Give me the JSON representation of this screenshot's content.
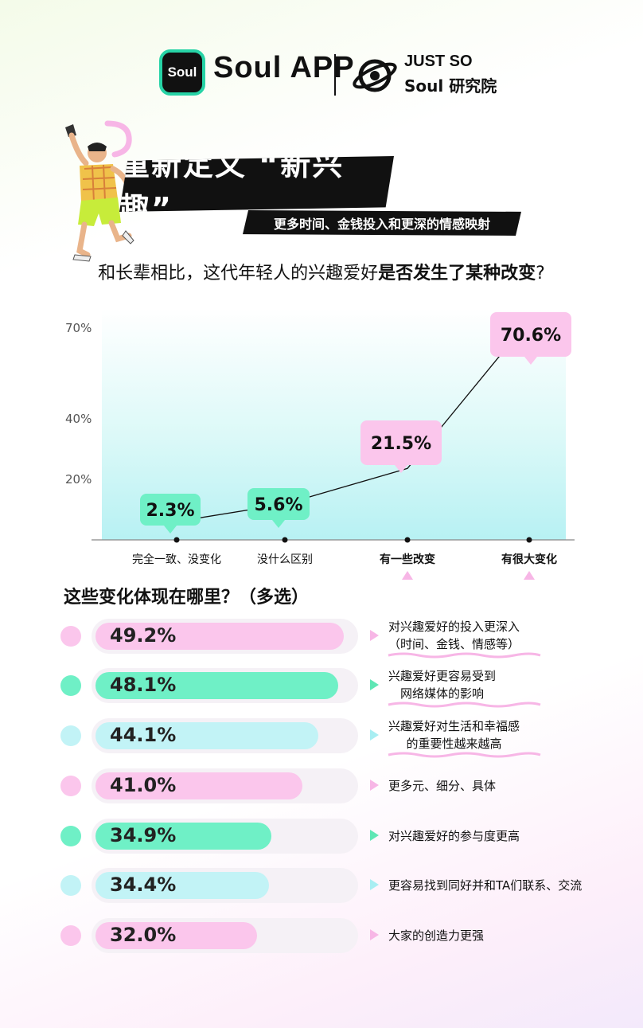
{
  "header": {
    "logo_text": "Soul",
    "brand_name": "Soul APP",
    "partner_line1": "JUST SO",
    "partner_line2": "Soul 研究院"
  },
  "banner": {
    "title": "重新定义 “新兴趣”",
    "subtitle": "更多时间、金钱投入和更深的情感映射"
  },
  "question": {
    "plain": "和长辈相比，这代年轻人的兴趣爱好",
    "bold": "是否发生了某种改变",
    "end": "?"
  },
  "colors": {
    "pink": "#fbc6ec",
    "green": "#6ff0c6",
    "cyan": "#c2f3f6",
    "pink_arrow": "#f7b6e6",
    "green_arrow": "#5fe7b5",
    "cyan_arrow": "#a8eef2"
  },
  "chart_data": [
    {
      "type": "line",
      "categories": [
        "完全一致、没变化",
        "没什么区别",
        "有一些改变",
        "有很大变化"
      ],
      "values": [
        2.3,
        5.6,
        21.5,
        70.6
      ],
      "value_labels": [
        "2.3%",
        "5.6%",
        "21.5%",
        "70.6%"
      ],
      "label_colors": [
        "green",
        "green",
        "pink",
        "pink"
      ],
      "yticks": [
        {
          "value": 20,
          "label": "20%"
        },
        {
          "value": 40,
          "label": "40%"
        },
        {
          "value": 70,
          "label": "70%"
        }
      ],
      "highlight_categories": [
        2,
        3
      ]
    },
    {
      "type": "bar",
      "title": "这些变化体现在哪里？（多选）",
      "categories": [
        "对兴趣爱好的投入更深入（时间、金钱、情感等）",
        "兴趣爱好更容易受到网络媒体的影响",
        "兴趣爱好对生活和幸福感的重要性越来越高",
        "更多元、细分、具体",
        "对兴趣爱好的参与度更高",
        "更容易找到同好并和TA们联系、交流",
        "大家的创造力更强"
      ],
      "values": [
        49.2,
        48.1,
        44.1,
        41.0,
        34.9,
        34.4,
        32.0
      ]
    }
  ],
  "bars": [
    {
      "value": 49.2,
      "label": "49.2%",
      "color": "pink",
      "lines": [
        "对兴趣爱好的投入更深入",
        "（时间、金钱、情感等）"
      ],
      "underline": true
    },
    {
      "value": 48.1,
      "label": "48.1%",
      "color": "green",
      "lines": [
        "兴趣爱好更容易受到",
        "网络媒体的影响"
      ],
      "underline": true
    },
    {
      "value": 44.1,
      "label": "44.1%",
      "color": "cyan",
      "lines": [
        "兴趣爱好对生活和幸福感",
        "的重要性越来越高"
      ],
      "underline": true
    },
    {
      "value": 41.0,
      "label": "41.0%",
      "color": "pink",
      "lines": [
        "更多元、细分、具体"
      ],
      "underline": false
    },
    {
      "value": 34.9,
      "label": "34.9%",
      "color": "green",
      "lines": [
        "对兴趣爱好的参与度更高"
      ],
      "underline": false
    },
    {
      "value": 34.4,
      "label": "34.4%",
      "color": "cyan",
      "lines": [
        "更容易找到同好并和TA们联系、交流"
      ],
      "underline": false
    },
    {
      "value": 32.0,
      "label": "32.0%",
      "color": "pink",
      "lines": [
        "大家的创造力更强"
      ],
      "underline": false
    }
  ]
}
